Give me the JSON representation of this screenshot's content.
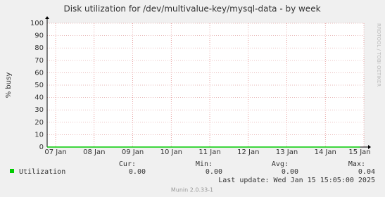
{
  "chart_data": {
    "type": "line",
    "title": "Disk utilization for /dev/multivalue-key/mysql-data - by week",
    "y_label": "% busy",
    "ylim": [
      0,
      100
    ],
    "yticks": [
      0,
      10,
      20,
      30,
      40,
      50,
      60,
      70,
      80,
      90,
      100
    ],
    "xlim": [
      -0.22,
      8.0
    ],
    "xticks": [
      {
        "value": 0,
        "label": "07 Jan"
      },
      {
        "value": 1,
        "label": "08 Jan"
      },
      {
        "value": 2,
        "label": "09 Jan"
      },
      {
        "value": 3,
        "label": "10 Jan"
      },
      {
        "value": 4,
        "label": "11 Jan"
      },
      {
        "value": 5,
        "label": "12 Jan"
      },
      {
        "value": 6,
        "label": "13 Jan"
      },
      {
        "value": 7,
        "label": "14 Jan"
      },
      {
        "value": 8,
        "label": "15 Jan"
      }
    ],
    "grid": true,
    "series": [
      {
        "name": "Utilization",
        "color": "#00cc00",
        "x": [
          -0.22,
          2,
          4,
          6,
          7.9
        ],
        "values": [
          0,
          0,
          0,
          0,
          0
        ]
      }
    ]
  },
  "legend": {
    "headers": [
      "Cur:",
      "Min:",
      "Avg:",
      "Max:"
    ],
    "values": [
      "0.00",
      "0.00",
      "0.00",
      "0.04"
    ]
  },
  "last_update": "Last update: Wed Jan 15 15:05:00 2025",
  "footer": "Munin 2.0.33-1",
  "watermark": "RRDTOOL / TOBI OETIKER"
}
